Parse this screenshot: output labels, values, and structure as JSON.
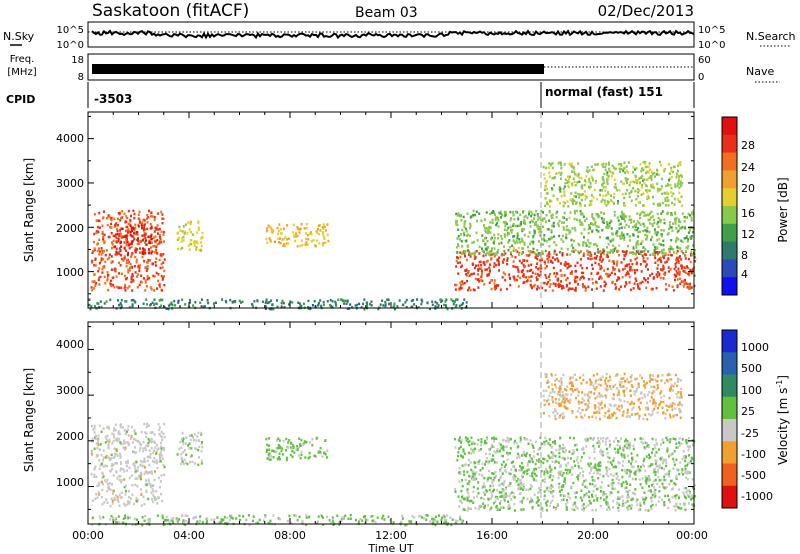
{
  "header": {
    "station": "Saskatoon (fitACF)",
    "beam": "Beam 03",
    "date": "02/Dec/2013"
  },
  "strip_labels": {
    "nsky": "N.Sky",
    "nsky_ticks": [
      "10^5",
      "10^0"
    ],
    "nsearch": "N.Search",
    "nsearch_ticks": [
      "10^5",
      "10^0"
    ],
    "freq_line1": "Freq.",
    "freq_line2": "[MHz]",
    "freq_ticks": [
      "18",
      "8"
    ],
    "nave": "Nave",
    "nave_ticks": [
      "60",
      "0"
    ],
    "cpid": "CPID",
    "cpid_left": "-3503",
    "cpid_right": "normal (fast) 151"
  },
  "axes": {
    "ylabel": "Slant Range [km]",
    "xlabel": "Time UT",
    "x_ticks": [
      "00:00",
      "04:00",
      "08:00",
      "12:00",
      "16:00",
      "20:00",
      "00:00"
    ],
    "y_ticks": [
      "1000",
      "2000",
      "3000",
      "4000"
    ]
  },
  "colorbars": {
    "power": {
      "label": "Power [dB]",
      "ticks": [
        "4",
        "8",
        "12",
        "16",
        "20",
        "24",
        "28"
      ],
      "colors": [
        "#1010ee",
        "#2a4ab8",
        "#2f7a6a",
        "#3fa04a",
        "#88c84a",
        "#e0d030",
        "#f0a030",
        "#f07020",
        "#e83018",
        "#e01010"
      ]
    },
    "velocity": {
      "label": "Velocity [m s",
      "label_sup": "-1",
      "label_end": "]",
      "ticks": [
        "1000",
        "500",
        "100",
        "25",
        "-25",
        "-100",
        "-500",
        "-1000"
      ],
      "colors": [
        "#1a2ad0",
        "#2a60b0",
        "#2f8a60",
        "#60c040",
        "#c8c8c8",
        "#f0a030",
        "#f06020",
        "#e01010"
      ]
    }
  },
  "chart_data": [
    {
      "type": "heatmap",
      "title": "Power [dB]",
      "xlabel": "",
      "ylabel": "Slant Range [km]",
      "xlim": [
        "00:00",
        "24:00"
      ],
      "ylim": [
        180,
        4600
      ],
      "zlim": [
        0,
        30
      ],
      "regions": [
        {
          "t": [
            0.1,
            3.0
          ],
          "r": [
            600,
            2400
          ],
          "value": 24
        },
        {
          "t": [
            1.0,
            2.5
          ],
          "r": [
            1400,
            2100
          ],
          "value": 27
        },
        {
          "t": [
            3.5,
            4.5
          ],
          "r": [
            1500,
            2200
          ],
          "value": 16
        },
        {
          "t": [
            7.0,
            9.5
          ],
          "r": [
            1600,
            2100
          ],
          "value": 18
        },
        {
          "t": [
            14.5,
            24.0
          ],
          "r": [
            600,
            1500
          ],
          "value": 25
        },
        {
          "t": [
            14.5,
            24.0
          ],
          "r": [
            1400,
            2400
          ],
          "value": 13
        },
        {
          "t": [
            18.0,
            23.5
          ],
          "r": [
            2500,
            3500
          ],
          "value": 14
        },
        {
          "t": [
            0.0,
            15.0
          ],
          "r": [
            180,
            400
          ],
          "value": 8
        }
      ]
    },
    {
      "type": "heatmap",
      "title": "Velocity [m s-1]",
      "xlabel": "Time UT",
      "ylabel": "Slant Range [km]",
      "xlim": [
        "00:00",
        "24:00"
      ],
      "ylim": [
        180,
        4600
      ],
      "zlim": [
        -1000,
        1000
      ],
      "regions": [
        {
          "t": [
            0.1,
            3.0
          ],
          "r": [
            600,
            2400
          ],
          "value": -120
        },
        {
          "t": [
            3.5,
            4.5
          ],
          "r": [
            1500,
            2200
          ],
          "value": -80
        },
        {
          "t": [
            7.0,
            9.5
          ],
          "r": [
            1600,
            2100
          ],
          "value": 60
        },
        {
          "t": [
            14.5,
            24.0
          ],
          "r": [
            500,
            2100
          ],
          "value": 0
        },
        {
          "t": [
            18.0,
            23.5
          ],
          "r": [
            2500,
            3500
          ],
          "value": -250
        },
        {
          "t": [
            0.0,
            15.0
          ],
          "r": [
            180,
            400
          ],
          "value": 40
        }
      ]
    }
  ]
}
